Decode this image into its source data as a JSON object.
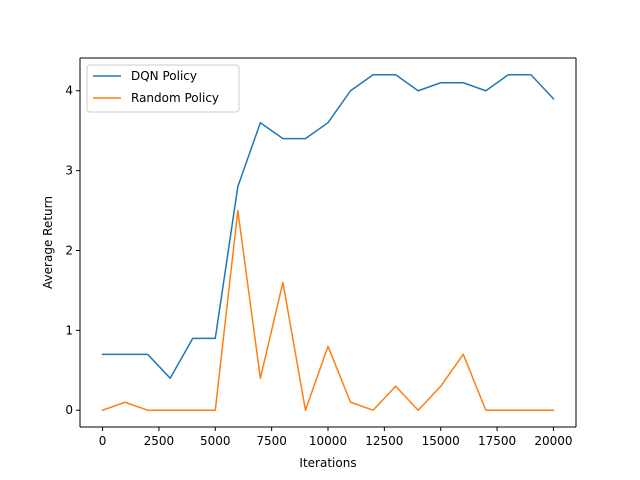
{
  "chart_data": {
    "type": "line",
    "title": "",
    "xlabel": "Iterations",
    "ylabel": "Average Return",
    "xlim": [
      -1000,
      21000
    ],
    "ylim": [
      -0.21,
      4.41
    ],
    "xticks": [
      0,
      2500,
      5000,
      7500,
      10000,
      12500,
      15000,
      17500,
      20000
    ],
    "xtick_labels": [
      "0",
      "2500",
      "5000",
      "7500",
      "10000",
      "12500",
      "15000",
      "17500",
      "20000"
    ],
    "yticks": [
      0,
      1,
      2,
      3,
      4
    ],
    "ytick_labels": [
      "0",
      "1",
      "2",
      "3",
      "4"
    ],
    "grid": false,
    "legend_position": "top-left",
    "x": [
      0,
      1000,
      2000,
      3000,
      4000,
      5000,
      6000,
      7000,
      8000,
      9000,
      10000,
      11000,
      12000,
      13000,
      14000,
      15000,
      16000,
      17000,
      18000,
      19000,
      20000
    ],
    "series": [
      {
        "name": "DQN Policy",
        "color": "#1f77b4",
        "values": [
          0.7,
          0.7,
          0.7,
          0.4,
          0.9,
          0.9,
          2.8,
          3.6,
          3.4,
          3.4,
          3.6,
          4.0,
          4.2,
          4.2,
          4.0,
          4.1,
          4.1,
          4.0,
          4.2,
          4.2,
          3.9
        ]
      },
      {
        "name": "Random Policy",
        "color": "#ff7f0e",
        "values": [
          0.0,
          0.1,
          0.0,
          0.0,
          0.0,
          0.0,
          2.5,
          0.4,
          1.6,
          0.0,
          0.8,
          0.1,
          0.0,
          0.3,
          0.0,
          0.3,
          0.7,
          0.0,
          0.0,
          0.0,
          0.0
        ]
      }
    ]
  }
}
